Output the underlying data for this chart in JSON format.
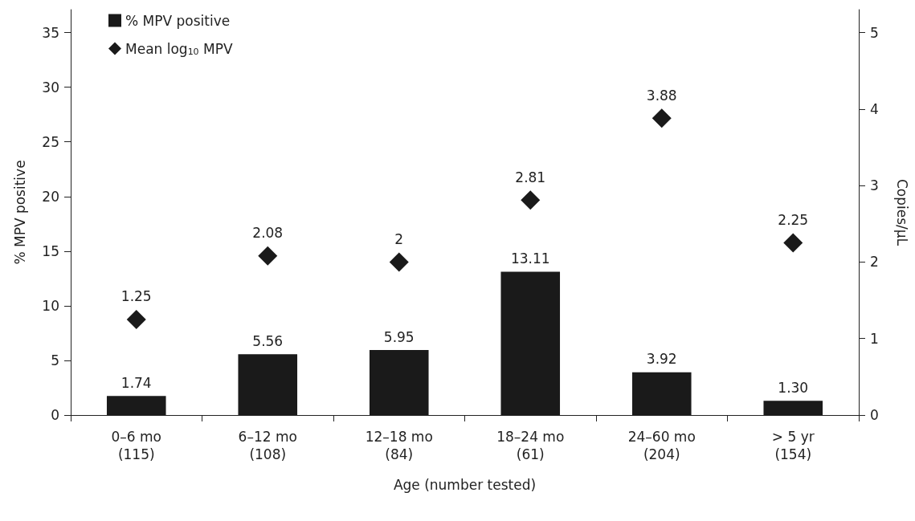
{
  "chart_data": {
    "type": "bar",
    "xlabel": "Age (number tested)",
    "ylabel": "% MPV positive",
    "y2label": "Copies/µL",
    "categories": [
      "0–6 mo\n(115)",
      "6–12 mo\n(108)",
      "12–18 mo\n(84)",
      "18–24 mo\n(61)",
      "24–60 mo\n(204)",
      "> 5 yr\n(154)"
    ],
    "series": [
      {
        "name": "% MPV positive",
        "color": "#1a1a1a",
        "values": [
          1.74,
          5.56,
          5.95,
          13.11,
          3.92,
          1.3
        ],
        "value_labels": [
          "1.74",
          "5.56",
          "5.95",
          "13.11",
          "3.92",
          "1.30"
        ]
      },
      {
        "name": "Mean log$_{10}$ MPV",
        "type": "scatter",
        "axis": "y2",
        "marker": "diamond",
        "color": "#1a1a1a",
        "values": [
          1.25,
          2.08,
          2,
          2.81,
          3.88,
          2.25
        ],
        "value_labels": [
          "1.25",
          "2.08",
          "2",
          "2.81",
          "3.88",
          "2.25"
        ]
      }
    ],
    "ylim": [
      0,
      37.1
    ],
    "yticks": [
      0,
      5,
      10,
      15,
      20,
      25,
      30,
      35
    ],
    "y2lim": [
      0,
      5.3
    ],
    "y2ticks": [
      0,
      1,
      2,
      3,
      4,
      5
    ],
    "grid": false,
    "legend": "top left"
  }
}
